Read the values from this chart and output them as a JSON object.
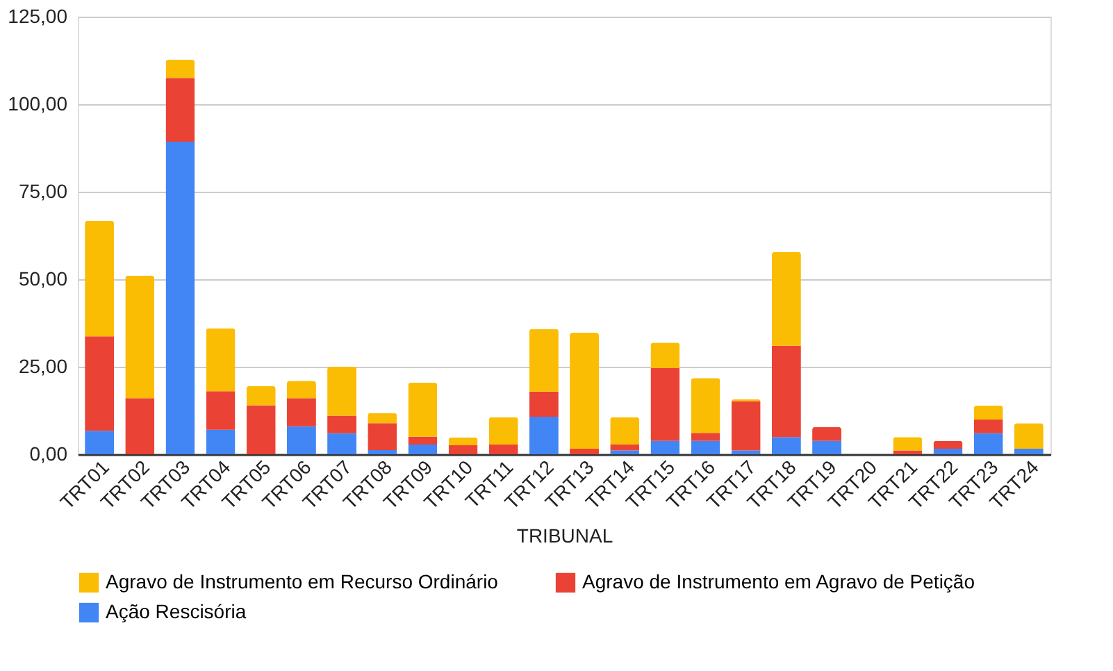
{
  "chart_data": {
    "type": "bar",
    "stacked": true,
    "xlabel": "TRIBUNAL",
    "legend": "bottom",
    "grid": "y",
    "categories": [
      "TRT01",
      "TRT02",
      "TRT03",
      "TRT04",
      "TRT05",
      "TRT06",
      "TRT07",
      "TRT08",
      "TRT09",
      "TRT10",
      "TRT11",
      "TRT12",
      "TRT13",
      "TRT14",
      "TRT15",
      "TRT16",
      "TRT17",
      "TRT18",
      "TRT19",
      "TRT20",
      "TRT21",
      "TRT22",
      "TRT23",
      "TRT24"
    ],
    "ylim": [
      0,
      125
    ],
    "yticks": [
      {
        "value": 0,
        "label": "0,00"
      },
      {
        "value": 25,
        "label": "25,00"
      },
      {
        "value": 50,
        "label": "50,00"
      },
      {
        "value": 75,
        "label": "75,00"
      },
      {
        "value": 100,
        "label": "100,00"
      },
      {
        "value": 125,
        "label": "125,00"
      }
    ],
    "series": [
      {
        "name": "Ação Rescisória",
        "color": "#4285f4",
        "values": [
          6.7,
          0,
          89.3,
          7,
          0,
          8,
          6,
          1.2,
          2.8,
          0,
          0,
          10.7,
          0,
          1.1,
          3.8,
          3.8,
          1.1,
          4.9,
          3.8,
          0,
          0,
          1.6,
          6,
          1.6
        ]
      },
      {
        "name": "Agravo de Instrumento em Agravo de Petição",
        "color": "#ea4335",
        "values": [
          27,
          16,
          18.2,
          11,
          14,
          8,
          5,
          7.7,
          2.2,
          2.6,
          2.8,
          7.2,
          1.6,
          1.7,
          20.8,
          2.3,
          14.1,
          26.1,
          4,
          0,
          1.1,
          2.2,
          3.9,
          0
        ]
      },
      {
        "name": "Agravo de Instrumento em Recurso Ordinário",
        "color": "#fbbc04",
        "values": [
          33,
          35,
          5.2,
          18,
          5.5,
          5,
          14,
          2.9,
          15.5,
          2.2,
          7.8,
          17.9,
          33.1,
          7.8,
          7.3,
          15.7,
          0.5,
          26.8,
          0,
          0,
          3.8,
          0,
          4,
          7.3
        ]
      }
    ]
  }
}
